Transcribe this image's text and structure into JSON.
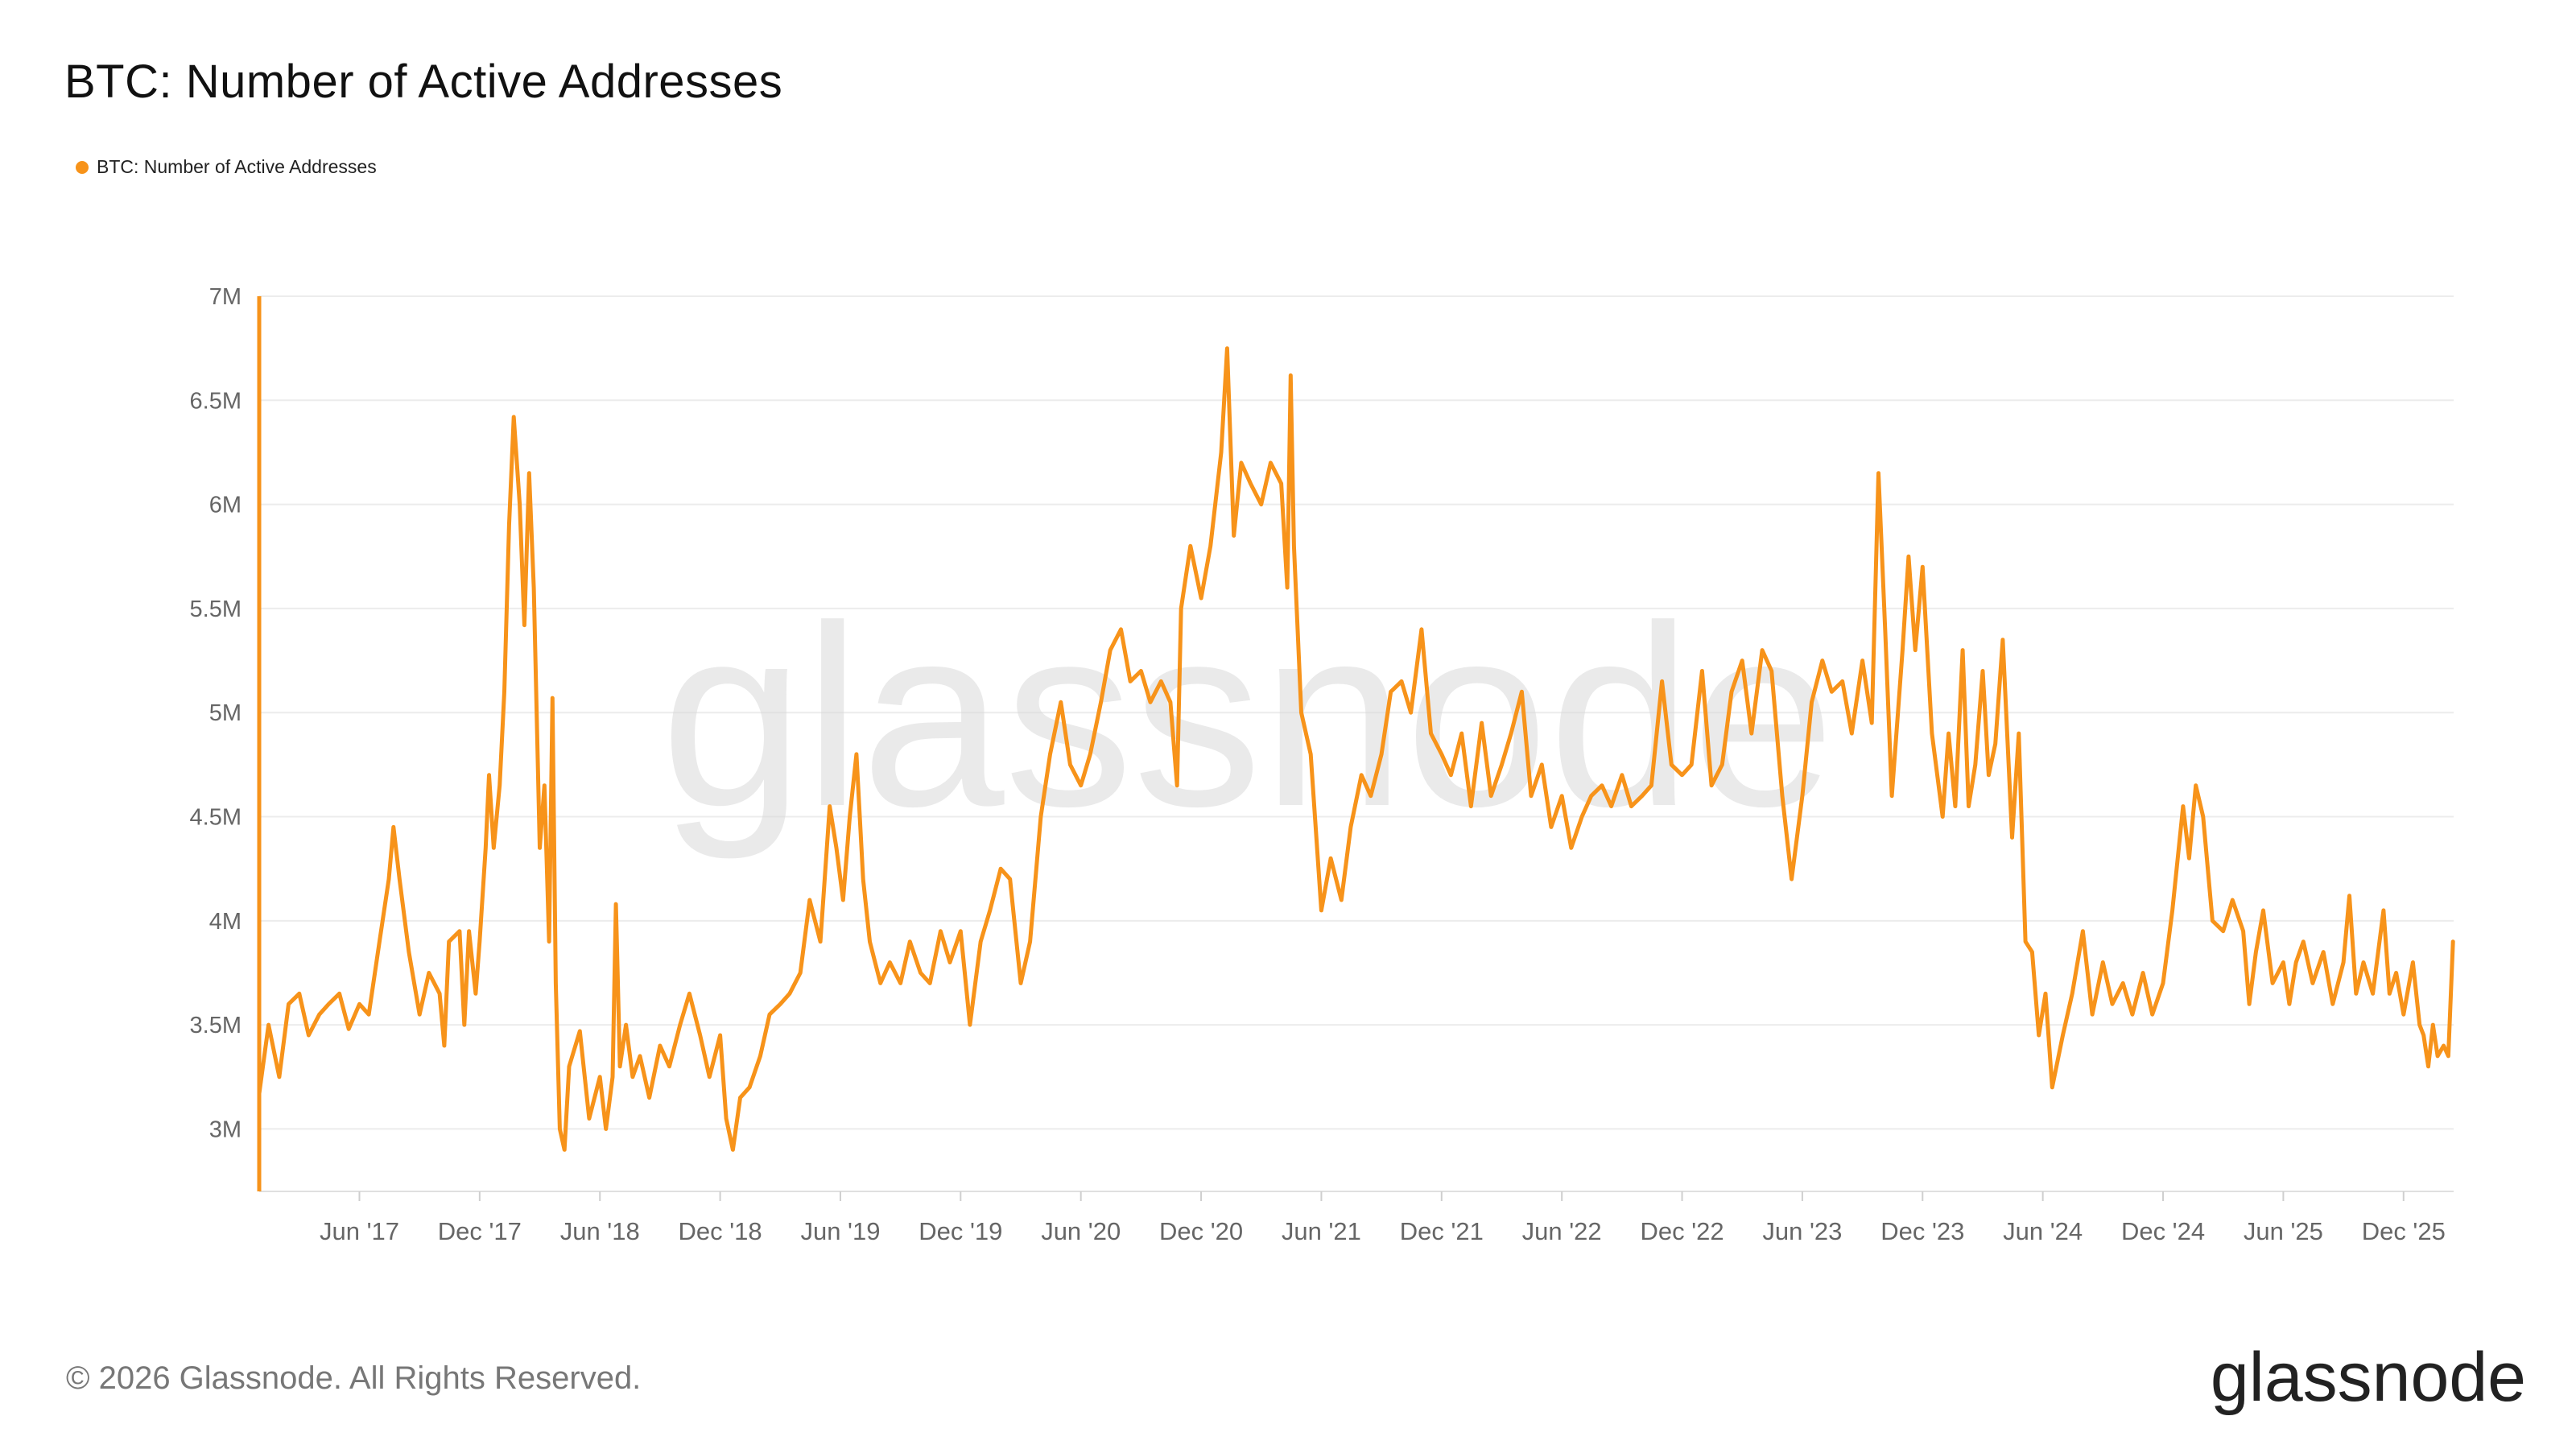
{
  "title": "BTC: Number of Active Addresses",
  "legend": {
    "label": "BTC: Number of Active Addresses",
    "color": "#F7931A"
  },
  "footer": {
    "copyright": "© 2026 Glassnode. All Rights Reserved.",
    "brand": "glassnode"
  },
  "watermark": "glassnode",
  "chart_data": {
    "type": "line",
    "title": "BTC: Number of Active Addresses",
    "xlabel": "",
    "ylabel": "",
    "x_tick_labels": [
      "Jun '17",
      "Dec '17",
      "Jun '18",
      "Dec '18",
      "Jun '19",
      "Dec '19",
      "Jun '20",
      "Dec '20",
      "Jun '21",
      "Dec '21",
      "Jun '22",
      "Dec '22",
      "Jun '23",
      "Dec '23",
      "Jun '24",
      "Dec '24",
      "Jun '25",
      "Dec '25"
    ],
    "y_tick_labels": [
      "3M",
      "3.5M",
      "4M",
      "4.5M",
      "5M",
      "5.5M",
      "6M",
      "6.5M",
      "7M"
    ],
    "y_tick_values": [
      3000000,
      3500000,
      4000000,
      4500000,
      5000000,
      5500000,
      6000000,
      6500000,
      7000000
    ],
    "ylim": [
      2700000,
      7000000
    ],
    "xlim": [
      "2017-01",
      "2026-02"
    ],
    "grid": true,
    "legend_position": "top-left",
    "series": [
      {
        "name": "BTC: Number of Active Addresses",
        "color": "#F7931A",
        "points": [
          [
            "2017-01-01",
            3170000
          ],
          [
            "2017-01-15",
            3500000
          ],
          [
            "2017-02-01",
            3250000
          ],
          [
            "2017-02-15",
            3600000
          ],
          [
            "2017-03-01",
            3650000
          ],
          [
            "2017-03-15",
            3450000
          ],
          [
            "2017-04-01",
            3550000
          ],
          [
            "2017-04-15",
            3600000
          ],
          [
            "2017-05-01",
            3650000
          ],
          [
            "2017-05-15",
            3480000
          ],
          [
            "2017-06-01",
            3600000
          ],
          [
            "2017-06-15",
            3550000
          ],
          [
            "2017-07-01",
            3900000
          ],
          [
            "2017-07-15",
            4200000
          ],
          [
            "2017-07-22",
            4450000
          ],
          [
            "2017-08-01",
            4200000
          ],
          [
            "2017-08-15",
            3850000
          ],
          [
            "2017-09-01",
            3550000
          ],
          [
            "2017-09-15",
            3750000
          ],
          [
            "2017-10-01",
            3650000
          ],
          [
            "2017-10-08",
            3400000
          ],
          [
            "2017-10-15",
            3900000
          ],
          [
            "2017-11-01",
            3950000
          ],
          [
            "2017-11-08",
            3500000
          ],
          [
            "2017-11-15",
            3950000
          ],
          [
            "2017-11-25",
            3650000
          ],
          [
            "2017-12-01",
            3900000
          ],
          [
            "2017-12-10",
            4350000
          ],
          [
            "2017-12-15",
            4700000
          ],
          [
            "2017-12-22",
            4350000
          ],
          [
            "2018-01-01",
            4650000
          ],
          [
            "2018-01-08",
            5100000
          ],
          [
            "2018-01-15",
            5900000
          ],
          [
            "2018-01-22",
            6420000
          ],
          [
            "2018-02-01",
            6000000
          ],
          [
            "2018-02-08",
            5420000
          ],
          [
            "2018-02-15",
            6150000
          ],
          [
            "2018-02-22",
            5600000
          ],
          [
            "2018-03-01",
            4350000
          ],
          [
            "2018-03-08",
            4650000
          ],
          [
            "2018-03-15",
            3900000
          ],
          [
            "2018-03-20",
            5070000
          ],
          [
            "2018-03-25",
            3700000
          ],
          [
            "2018-04-01",
            3000000
          ],
          [
            "2018-04-08",
            2900000
          ],
          [
            "2018-04-15",
            3300000
          ],
          [
            "2018-05-01",
            3470000
          ],
          [
            "2018-05-15",
            3050000
          ],
          [
            "2018-06-01",
            3250000
          ],
          [
            "2018-06-10",
            3000000
          ],
          [
            "2018-06-20",
            3250000
          ],
          [
            "2018-06-25",
            4080000
          ],
          [
            "2018-07-01",
            3300000
          ],
          [
            "2018-07-10",
            3500000
          ],
          [
            "2018-07-20",
            3250000
          ],
          [
            "2018-08-01",
            3350000
          ],
          [
            "2018-08-15",
            3150000
          ],
          [
            "2018-09-01",
            3400000
          ],
          [
            "2018-09-15",
            3300000
          ],
          [
            "2018-10-01",
            3500000
          ],
          [
            "2018-10-15",
            3650000
          ],
          [
            "2018-11-01",
            3450000
          ],
          [
            "2018-11-15",
            3250000
          ],
          [
            "2018-12-01",
            3450000
          ],
          [
            "2018-12-10",
            3050000
          ],
          [
            "2018-12-20",
            2900000
          ],
          [
            "2019-01-01",
            3150000
          ],
          [
            "2019-01-15",
            3200000
          ],
          [
            "2019-02-01",
            3350000
          ],
          [
            "2019-02-15",
            3550000
          ],
          [
            "2019-03-01",
            3600000
          ],
          [
            "2019-03-15",
            3650000
          ],
          [
            "2019-04-01",
            3750000
          ],
          [
            "2019-04-15",
            4100000
          ],
          [
            "2019-05-01",
            3900000
          ],
          [
            "2019-05-15",
            4550000
          ],
          [
            "2019-05-25",
            4350000
          ],
          [
            "2019-06-05",
            4100000
          ],
          [
            "2019-06-15",
            4500000
          ],
          [
            "2019-06-25",
            4800000
          ],
          [
            "2019-07-05",
            4200000
          ],
          [
            "2019-07-15",
            3900000
          ],
          [
            "2019-08-01",
            3700000
          ],
          [
            "2019-08-15",
            3800000
          ],
          [
            "2019-09-01",
            3700000
          ],
          [
            "2019-09-15",
            3900000
          ],
          [
            "2019-10-01",
            3750000
          ],
          [
            "2019-10-15",
            3700000
          ],
          [
            "2019-11-01",
            3950000
          ],
          [
            "2019-11-15",
            3800000
          ],
          [
            "2019-12-01",
            3950000
          ],
          [
            "2019-12-15",
            3500000
          ],
          [
            "2020-01-01",
            3900000
          ],
          [
            "2020-01-15",
            4050000
          ],
          [
            "2020-02-01",
            4250000
          ],
          [
            "2020-02-15",
            4200000
          ],
          [
            "2020-03-01",
            3700000
          ],
          [
            "2020-03-15",
            3900000
          ],
          [
            "2020-04-01",
            4500000
          ],
          [
            "2020-04-15",
            4800000
          ],
          [
            "2020-05-01",
            5050000
          ],
          [
            "2020-05-15",
            4750000
          ],
          [
            "2020-06-01",
            4650000
          ],
          [
            "2020-06-15",
            4800000
          ],
          [
            "2020-07-01",
            5050000
          ],
          [
            "2020-07-15",
            5300000
          ],
          [
            "2020-08-01",
            5400000
          ],
          [
            "2020-08-15",
            5150000
          ],
          [
            "2020-09-01",
            5200000
          ],
          [
            "2020-09-15",
            5050000
          ],
          [
            "2020-10-01",
            5150000
          ],
          [
            "2020-10-15",
            5050000
          ],
          [
            "2020-10-25",
            4650000
          ],
          [
            "2020-11-01",
            5500000
          ],
          [
            "2020-11-15",
            5800000
          ],
          [
            "2020-12-01",
            5550000
          ],
          [
            "2020-12-15",
            5800000
          ],
          [
            "2021-01-01",
            6250000
          ],
          [
            "2021-01-10",
            6750000
          ],
          [
            "2021-01-20",
            5850000
          ],
          [
            "2021-02-01",
            6200000
          ],
          [
            "2021-02-15",
            6100000
          ],
          [
            "2021-03-01",
            6000000
          ],
          [
            "2021-03-15",
            6200000
          ],
          [
            "2021-04-01",
            6100000
          ],
          [
            "2021-04-10",
            5600000
          ],
          [
            "2021-04-15",
            6620000
          ],
          [
            "2021-04-20",
            5800000
          ],
          [
            "2021-05-01",
            5000000
          ],
          [
            "2021-05-15",
            4800000
          ],
          [
            "2021-06-01",
            4050000
          ],
          [
            "2021-06-15",
            4300000
          ],
          [
            "2021-07-01",
            4100000
          ],
          [
            "2021-07-15",
            4450000
          ],
          [
            "2021-08-01",
            4700000
          ],
          [
            "2021-08-15",
            4600000
          ],
          [
            "2021-09-01",
            4800000
          ],
          [
            "2021-09-15",
            5100000
          ],
          [
            "2021-10-01",
            5150000
          ],
          [
            "2021-10-15",
            5000000
          ],
          [
            "2021-11-01",
            5400000
          ],
          [
            "2021-11-15",
            4900000
          ],
          [
            "2021-12-01",
            4800000
          ],
          [
            "2021-12-15",
            4700000
          ],
          [
            "2022-01-01",
            4900000
          ],
          [
            "2022-01-15",
            4550000
          ],
          [
            "2022-02-01",
            4950000
          ],
          [
            "2022-02-15",
            4600000
          ],
          [
            "2022-03-01",
            4750000
          ],
          [
            "2022-03-15",
            4900000
          ],
          [
            "2022-04-01",
            5100000
          ],
          [
            "2022-04-15",
            4600000
          ],
          [
            "2022-05-01",
            4750000
          ],
          [
            "2022-05-15",
            4450000
          ],
          [
            "2022-06-01",
            4600000
          ],
          [
            "2022-06-15",
            4350000
          ],
          [
            "2022-07-01",
            4500000
          ],
          [
            "2022-07-15",
            4600000
          ],
          [
            "2022-08-01",
            4650000
          ],
          [
            "2022-08-15",
            4550000
          ],
          [
            "2022-09-01",
            4700000
          ],
          [
            "2022-09-15",
            4550000
          ],
          [
            "2022-10-01",
            4600000
          ],
          [
            "2022-10-15",
            4650000
          ],
          [
            "2022-11-01",
            5150000
          ],
          [
            "2022-11-15",
            4750000
          ],
          [
            "2022-12-01",
            4700000
          ],
          [
            "2022-12-15",
            4750000
          ],
          [
            "2023-01-01",
            5200000
          ],
          [
            "2023-01-15",
            4650000
          ],
          [
            "2023-02-01",
            4750000
          ],
          [
            "2023-02-15",
            5100000
          ],
          [
            "2023-03-01",
            5250000
          ],
          [
            "2023-03-15",
            4900000
          ],
          [
            "2023-04-01",
            5300000
          ],
          [
            "2023-04-15",
            5200000
          ],
          [
            "2023-05-01",
            4600000
          ],
          [
            "2023-05-15",
            4200000
          ],
          [
            "2023-06-01",
            4600000
          ],
          [
            "2023-06-15",
            5050000
          ],
          [
            "2023-07-01",
            5250000
          ],
          [
            "2023-07-15",
            5100000
          ],
          [
            "2023-08-01",
            5150000
          ],
          [
            "2023-08-15",
            4900000
          ],
          [
            "2023-09-01",
            5250000
          ],
          [
            "2023-09-15",
            4950000
          ],
          [
            "2023-09-25",
            6150000
          ],
          [
            "2023-10-05",
            5400000
          ],
          [
            "2023-10-15",
            4600000
          ],
          [
            "2023-11-01",
            5300000
          ],
          [
            "2023-11-10",
            5750000
          ],
          [
            "2023-11-20",
            5300000
          ],
          [
            "2023-12-01",
            5700000
          ],
          [
            "2023-12-15",
            4900000
          ],
          [
            "2024-01-01",
            4500000
          ],
          [
            "2024-01-10",
            4900000
          ],
          [
            "2024-01-20",
            4550000
          ],
          [
            "2024-02-01",
            5300000
          ],
          [
            "2024-02-10",
            4550000
          ],
          [
            "2024-02-20",
            4750000
          ],
          [
            "2024-03-01",
            5200000
          ],
          [
            "2024-03-10",
            4700000
          ],
          [
            "2024-03-20",
            4850000
          ],
          [
            "2024-04-01",
            5350000
          ],
          [
            "2024-04-15",
            4400000
          ],
          [
            "2024-04-25",
            4900000
          ],
          [
            "2024-05-05",
            3900000
          ],
          [
            "2024-05-15",
            3850000
          ],
          [
            "2024-05-25",
            3450000
          ],
          [
            "2024-06-05",
            3650000
          ],
          [
            "2024-06-15",
            3200000
          ],
          [
            "2024-07-01",
            3450000
          ],
          [
            "2024-07-15",
            3650000
          ],
          [
            "2024-08-01",
            3950000
          ],
          [
            "2024-08-15",
            3550000
          ],
          [
            "2024-09-01",
            3800000
          ],
          [
            "2024-09-15",
            3600000
          ],
          [
            "2024-10-01",
            3700000
          ],
          [
            "2024-10-15",
            3550000
          ],
          [
            "2024-11-01",
            3750000
          ],
          [
            "2024-11-15",
            3550000
          ],
          [
            "2024-12-01",
            3700000
          ],
          [
            "2024-12-15",
            4050000
          ],
          [
            "2025-01-01",
            4550000
          ],
          [
            "2025-01-10",
            4300000
          ],
          [
            "2025-01-20",
            4650000
          ],
          [
            "2025-02-01",
            4500000
          ],
          [
            "2025-02-15",
            4000000
          ],
          [
            "2025-03-01",
            3950000
          ],
          [
            "2025-03-15",
            4100000
          ],
          [
            "2025-04-01",
            3950000
          ],
          [
            "2025-04-10",
            3600000
          ],
          [
            "2025-04-20",
            3850000
          ],
          [
            "2025-05-01",
            4050000
          ],
          [
            "2025-05-15",
            3700000
          ],
          [
            "2025-06-01",
            3800000
          ],
          [
            "2025-06-10",
            3600000
          ],
          [
            "2025-06-20",
            3800000
          ],
          [
            "2025-07-01",
            3900000
          ],
          [
            "2025-07-15",
            3700000
          ],
          [
            "2025-08-01",
            3850000
          ],
          [
            "2025-08-15",
            3600000
          ],
          [
            "2025-09-01",
            3800000
          ],
          [
            "2025-09-10",
            4120000
          ],
          [
            "2025-09-20",
            3650000
          ],
          [
            "2025-10-01",
            3800000
          ],
          [
            "2025-10-15",
            3650000
          ],
          [
            "2025-11-01",
            4050000
          ],
          [
            "2025-11-10",
            3650000
          ],
          [
            "2025-11-20",
            3750000
          ],
          [
            "2025-12-01",
            3550000
          ],
          [
            "2025-12-15",
            3800000
          ],
          [
            "2025-12-25",
            3500000
          ],
          [
            "2026-01-01",
            3450000
          ],
          [
            "2026-01-08",
            3300000
          ],
          [
            "2026-01-15",
            3500000
          ],
          [
            "2026-01-22",
            3350000
          ],
          [
            "2026-02-01",
            3400000
          ],
          [
            "2026-02-08",
            3350000
          ],
          [
            "2026-02-15",
            3900000
          ]
        ]
      }
    ]
  }
}
